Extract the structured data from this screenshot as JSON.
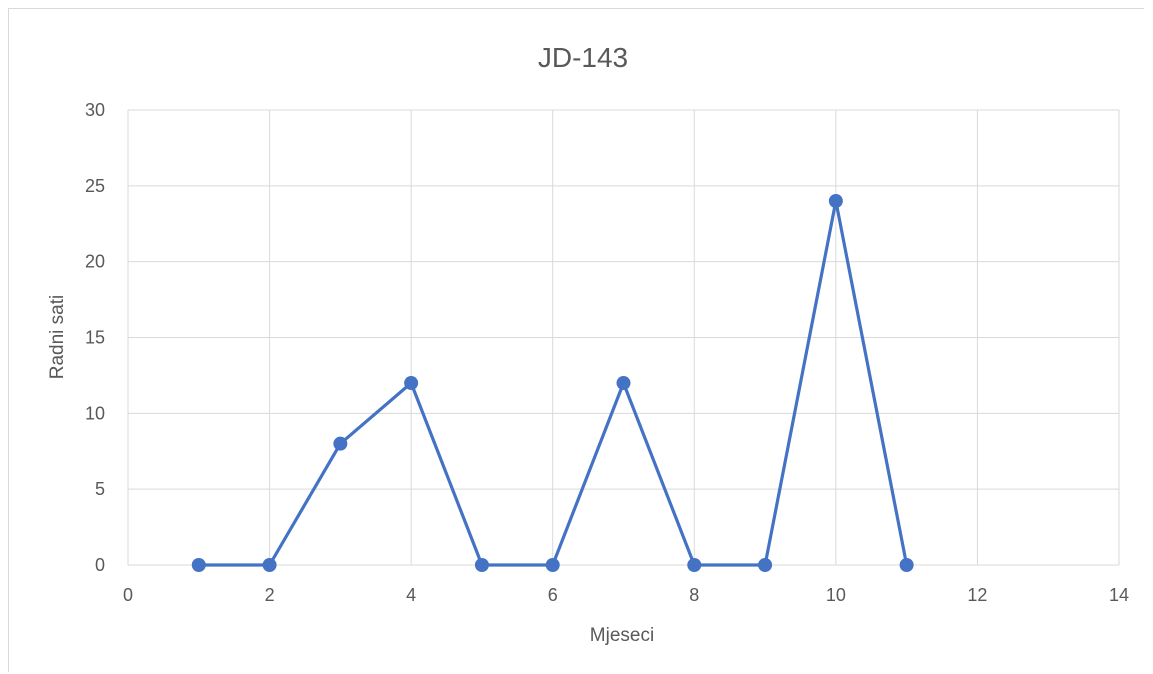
{
  "chart_data": {
    "type": "scatter",
    "mode": "lines+markers",
    "title": "JD-143",
    "xlabel": "Mjeseci",
    "ylabel": "Radni sati",
    "xlim": [
      0,
      14
    ],
    "ylim": [
      0,
      30
    ],
    "xticks": [
      0,
      2,
      4,
      6,
      8,
      10,
      12,
      14
    ],
    "yticks": [
      0,
      5,
      10,
      15,
      20,
      25,
      30
    ],
    "grid": true,
    "legend": "none",
    "series": [
      {
        "color": "#4472c4",
        "x": [
          1,
          2,
          3,
          4,
          5,
          6,
          7,
          8,
          9,
          10,
          11
        ],
        "y": [
          0,
          0,
          8,
          12,
          0,
          0,
          12,
          0,
          0,
          24,
          0
        ]
      }
    ]
  }
}
